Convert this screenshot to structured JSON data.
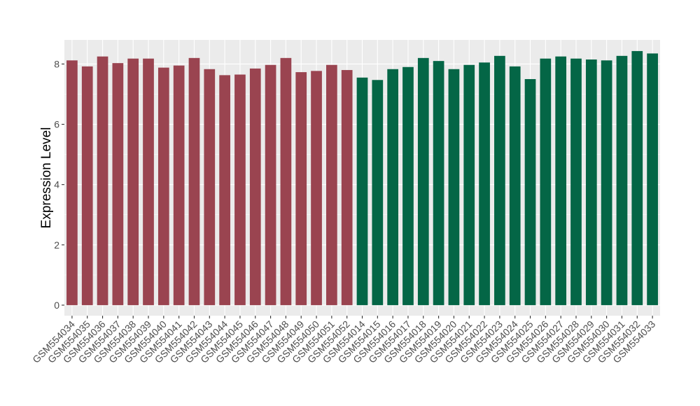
{
  "chart_data": {
    "type": "bar",
    "title": "",
    "xlabel": "",
    "ylabel": "Expression Level",
    "ylim": [
      -0.35,
      8.8
    ],
    "yticks": [
      0,
      2,
      4,
      6,
      8
    ],
    "grid": true,
    "legend": "none",
    "panel_background": "#ebebeb",
    "categories": [
      "GSM554034",
      "GSM554035",
      "GSM554036",
      "GSM554037",
      "GSM554038",
      "GSM554039",
      "GSM554040",
      "GSM554041",
      "GSM554042",
      "GSM554043",
      "GSM554044",
      "GSM554045",
      "GSM554046",
      "GSM554047",
      "GSM554048",
      "GSM554049",
      "GSM554050",
      "GSM554051",
      "GSM554052",
      "GSM554014",
      "GSM554015",
      "GSM554016",
      "GSM554017",
      "GSM554018",
      "GSM554019",
      "GSM554020",
      "GSM554021",
      "GSM554022",
      "GSM554023",
      "GSM554024",
      "GSM554025",
      "GSM554026",
      "GSM554027",
      "GSM554028",
      "GSM554029",
      "GSM554030",
      "GSM554031",
      "GSM554032",
      "GSM554033"
    ],
    "values": [
      8.12,
      7.92,
      8.25,
      8.03,
      8.18,
      8.18,
      7.88,
      7.95,
      8.2,
      7.83,
      7.63,
      7.65,
      7.85,
      7.97,
      8.2,
      7.73,
      7.77,
      7.97,
      7.8,
      7.55,
      7.47,
      7.83,
      7.9,
      8.2,
      8.1,
      7.83,
      7.97,
      8.05,
      8.27,
      7.92,
      7.5,
      8.18,
      8.25,
      8.18,
      8.15,
      8.12,
      8.27,
      8.43,
      8.35
    ],
    "colors": [
      "#9a4450",
      "#9a4450",
      "#9a4450",
      "#9a4450",
      "#9a4450",
      "#9a4450",
      "#9a4450",
      "#9a4450",
      "#9a4450",
      "#9a4450",
      "#9a4450",
      "#9a4450",
      "#9a4450",
      "#9a4450",
      "#9a4450",
      "#9a4450",
      "#9a4450",
      "#9a4450",
      "#9a4450",
      "#046646",
      "#046646",
      "#046646",
      "#046646",
      "#046646",
      "#046646",
      "#046646",
      "#046646",
      "#046646",
      "#046646",
      "#046646",
      "#046646",
      "#046646",
      "#046646",
      "#046646",
      "#046646",
      "#046646",
      "#046646",
      "#046646",
      "#046646"
    ]
  }
}
